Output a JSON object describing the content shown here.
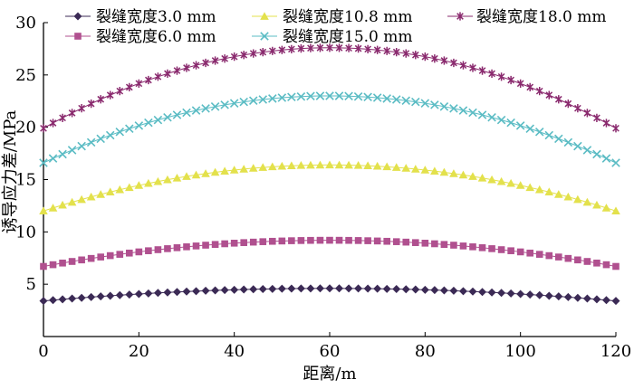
{
  "chart_data": {
    "type": "line",
    "title": "",
    "xlabel": "距离/m",
    "ylabel": "诱导应力差/MPa",
    "xlim": [
      0,
      120
    ],
    "ylim": [
      0,
      30
    ],
    "xticks": [
      0,
      20,
      40,
      60,
      80,
      100,
      120
    ],
    "yticks": [
      5,
      10,
      15,
      20,
      25,
      30
    ],
    "xtick_labels": [
      "0",
      "20",
      "40",
      "60",
      "80",
      "100",
      "120"
    ],
    "ytick_labels": [
      "5",
      "10",
      "15",
      "20",
      "25",
      "30"
    ],
    "grid": false,
    "legend_position": "top",
    "x_start": 0,
    "x_step": 2,
    "x_count": 61,
    "series": [
      {
        "name": "裂缝宽度3.0 mm",
        "marker": "diamond",
        "color": "#3b2a55",
        "y_end": 3.4,
        "y_peak": 4.6,
        "peak_x": 60
      },
      {
        "name": "裂缝宽度6.0 mm",
        "marker": "square",
        "color": "#b0508f",
        "y_end": 6.7,
        "y_peak": 9.2,
        "peak_x": 60
      },
      {
        "name": "裂缝宽度10.8 mm",
        "marker": "triangle",
        "color": "#e3e14c",
        "y_end": 12.0,
        "y_peak": 16.4,
        "peak_x": 60
      },
      {
        "name": "裂缝宽度15.0 mm",
        "marker": "x",
        "color": "#5bbcc4",
        "y_end": 16.6,
        "y_peak": 23.0,
        "peak_x": 60
      },
      {
        "name": "裂缝宽度18.0 mm",
        "marker": "star",
        "color": "#8a2a6e",
        "y_end": 19.9,
        "y_peak": 27.6,
        "peak_x": 60
      }
    ]
  }
}
